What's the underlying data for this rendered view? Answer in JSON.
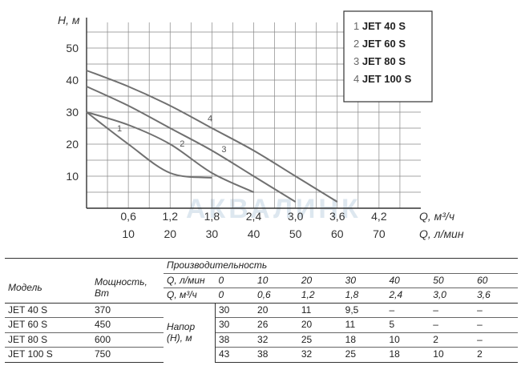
{
  "chart_data": {
    "type": "line",
    "ylabel": "H, м",
    "xlabel": "Q, м³/ч",
    "xlabel2": "Q, л/мин",
    "xlim": [
      0,
      4.8
    ],
    "ylim": [
      0,
      58
    ],
    "yticks": [
      "10",
      "20",
      "30",
      "40",
      "50"
    ],
    "xticks": [
      "0,6",
      "1,2",
      "1,8",
      "2,4",
      "3,0",
      "3,6",
      "4,2"
    ],
    "xticks2": [
      "10",
      "20",
      "30",
      "40",
      "50",
      "60",
      "70"
    ],
    "grid": true,
    "legend_position": "top-right",
    "watermark": "АКВАЛИНК",
    "series": [
      {
        "name": "JET 40 S",
        "label": "1",
        "x": [
          0,
          0.6,
          1.2,
          1.8
        ],
        "y": [
          30,
          20,
          11,
          9.5
        ]
      },
      {
        "name": "JET 60 S",
        "label": "2",
        "x": [
          0,
          0.6,
          1.2,
          1.8,
          2.4
        ],
        "y": [
          30,
          26,
          20,
          11,
          5
        ]
      },
      {
        "name": "JET 80 S",
        "label": "3",
        "x": [
          0,
          0.6,
          1.2,
          1.8,
          2.4,
          3.0
        ],
        "y": [
          38,
          32,
          25,
          18,
          10,
          2
        ]
      },
      {
        "name": "JET 100 S",
        "label": "4",
        "x": [
          0,
          0.6,
          1.2,
          1.8,
          2.4,
          3.0,
          3.6
        ],
        "y": [
          43,
          38,
          32,
          25,
          18,
          10,
          2
        ]
      }
    ],
    "legend": [
      {
        "num": "1",
        "text": "JET 40 S"
      },
      {
        "num": "2",
        "text": "JET 60 S"
      },
      {
        "num": "3",
        "text": "JET 80 S"
      },
      {
        "num": "4",
        "text": "JET 100 S"
      }
    ]
  },
  "table": {
    "col_model": "Модель",
    "col_power": "Мощность, Вт",
    "group_header": "Производительность",
    "q_lmin_label": "Q, л/мин",
    "q_m3h_label": "Q, м³/ч",
    "q_lmin": [
      "0",
      "10",
      "20",
      "30",
      "40",
      "50",
      "60"
    ],
    "q_m3h": [
      "0",
      "0,6",
      "1,2",
      "1,8",
      "2,4",
      "3,0",
      "3,6"
    ],
    "head_label": "Напор (Н), м",
    "rows": [
      {
        "model": "JET 40 S",
        "power": "370",
        "values": [
          "30",
          "20",
          "11",
          "9,5",
          "–",
          "–",
          "–"
        ]
      },
      {
        "model": "JET 60 S",
        "power": "450",
        "values": [
          "30",
          "26",
          "20",
          "11",
          "5",
          "–",
          "–"
        ]
      },
      {
        "model": "JET 80 S",
        "power": "600",
        "values": [
          "38",
          "32",
          "25",
          "18",
          "10",
          "2",
          "–"
        ]
      },
      {
        "model": "JET 100 S",
        "power": "750",
        "values": [
          "43",
          "38",
          "32",
          "25",
          "18",
          "10",
          "2"
        ]
      }
    ]
  },
  "colors": {
    "grid": "#888888",
    "curve": "#707070",
    "frame": "#333333"
  }
}
